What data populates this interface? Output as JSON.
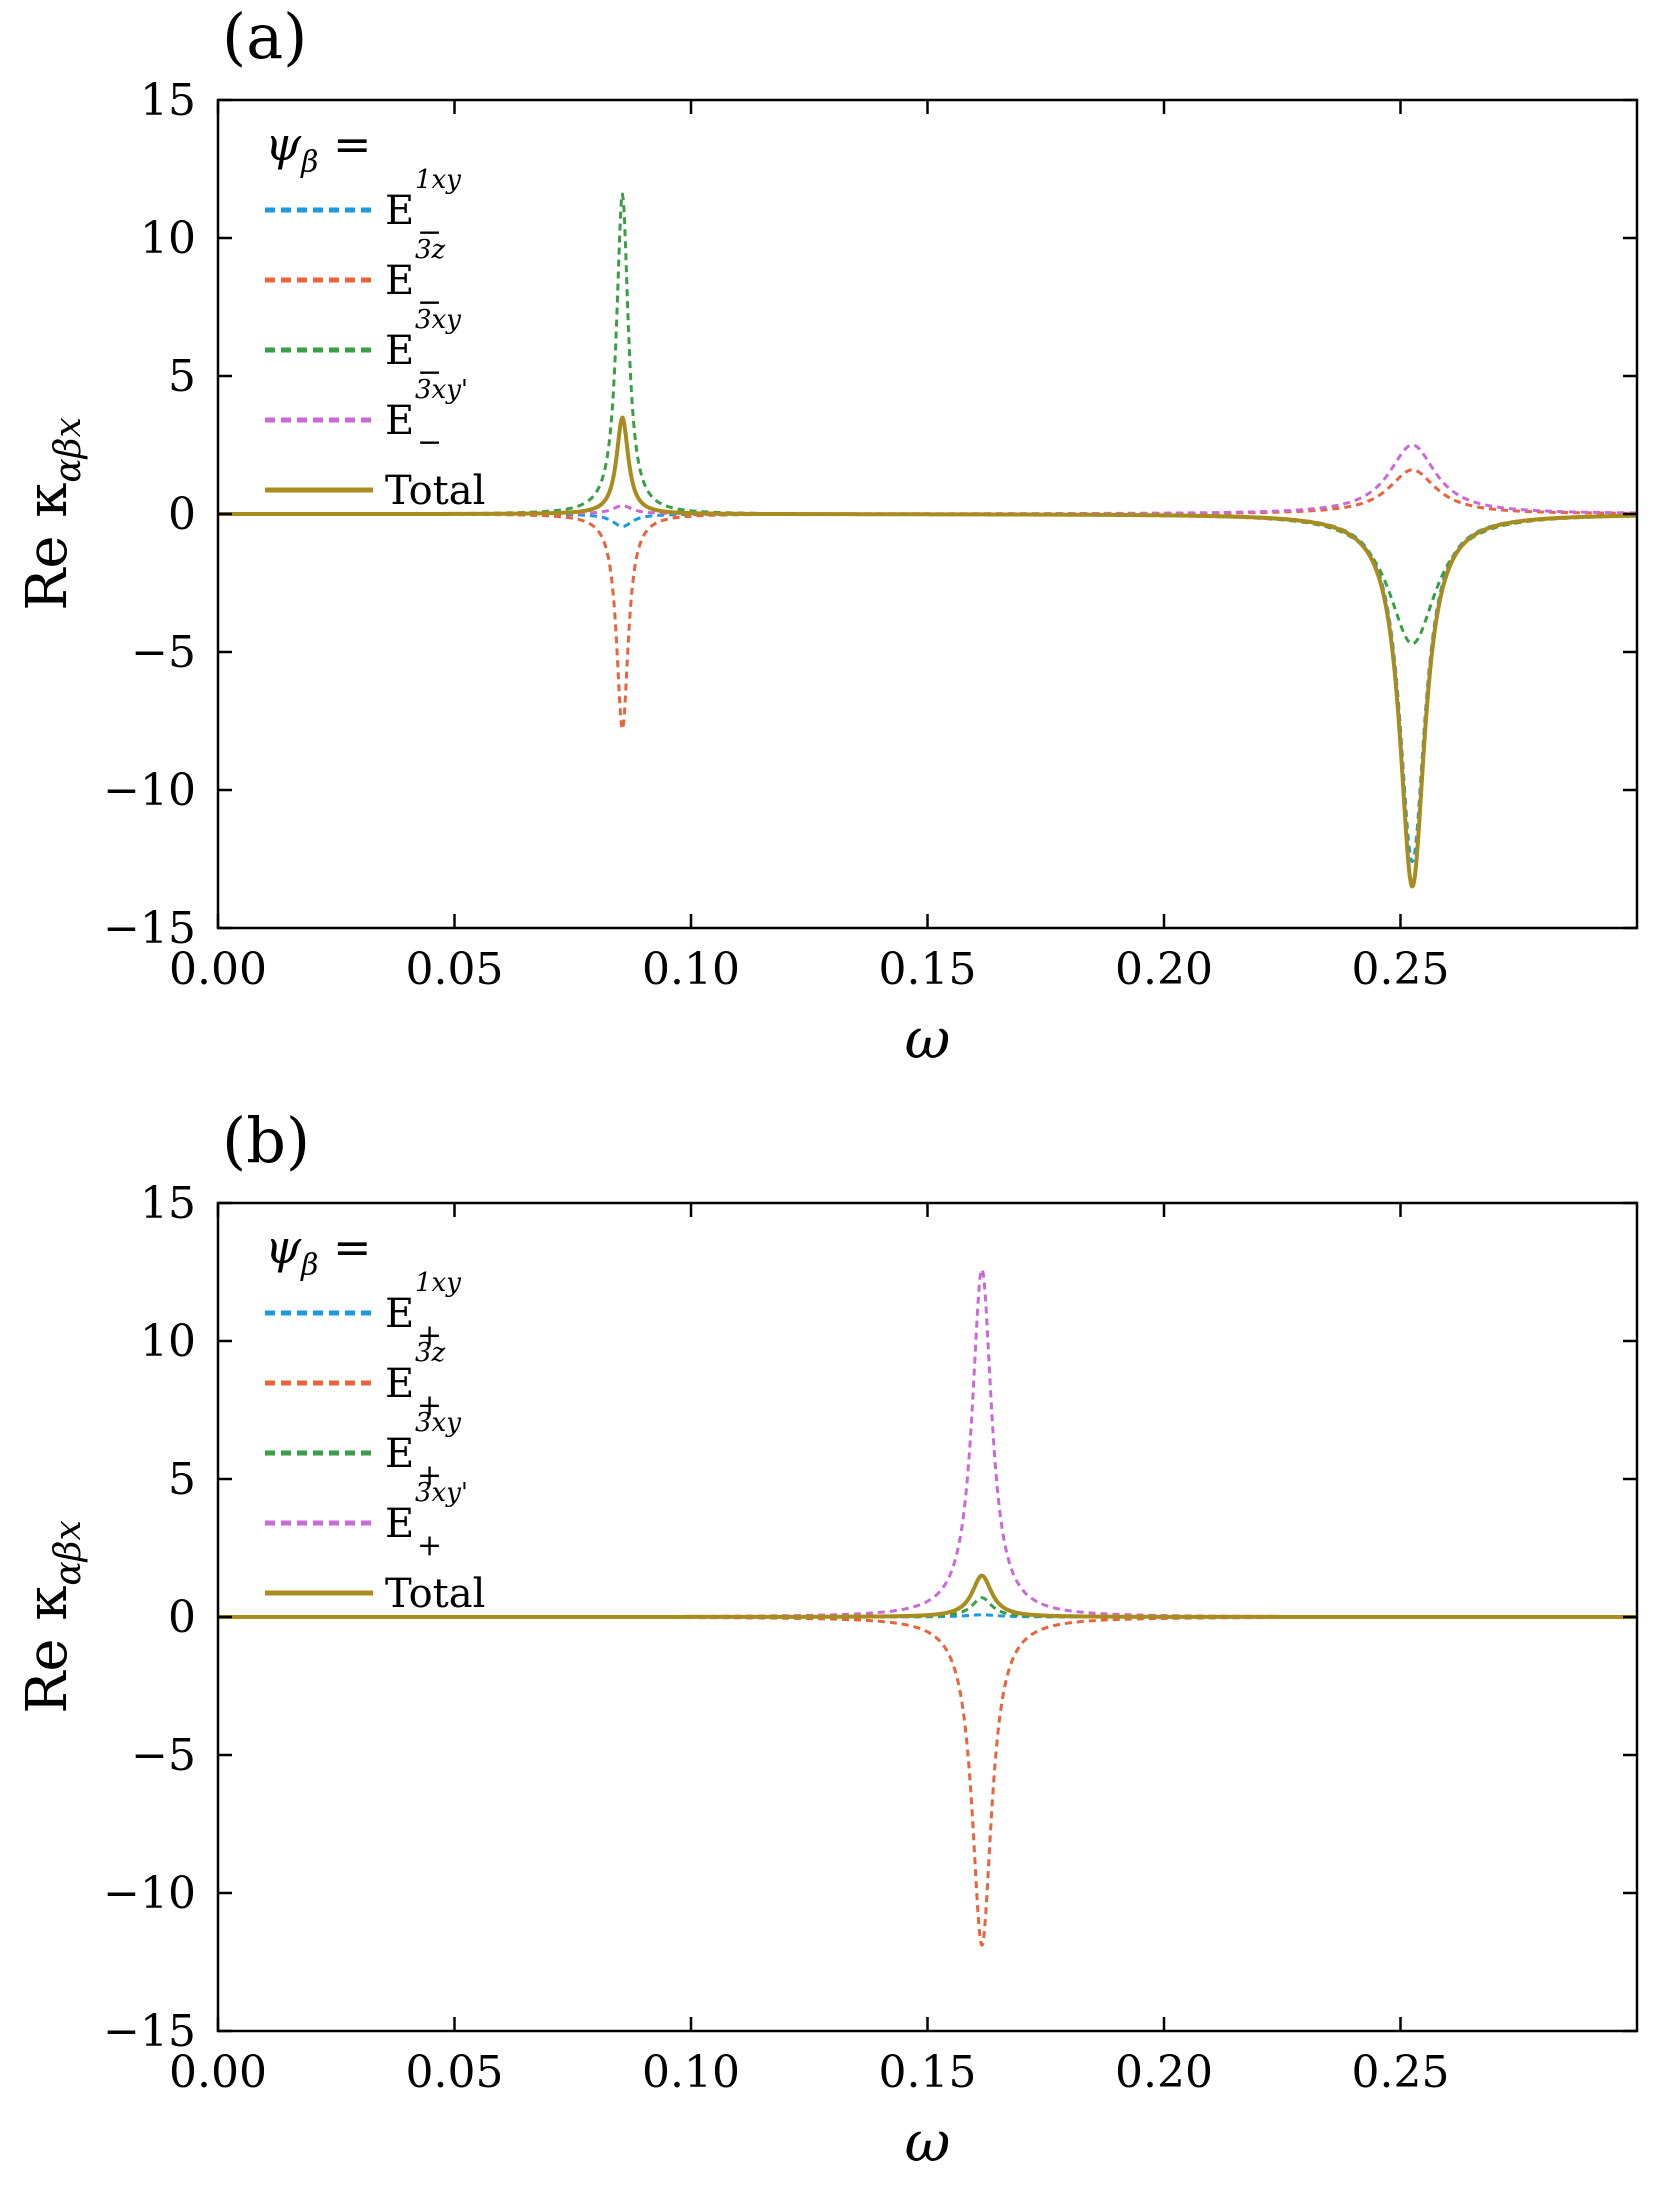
{
  "chart_data": [
    {
      "panel": "(a)",
      "type": "line",
      "xlabel": "ω",
      "ylabel": "Re κ",
      "ylabel_subscript": "αβx",
      "xlim": [
        0.0,
        0.3
      ],
      "ylim": [
        -15,
        15
      ],
      "xticks": [
        0.0,
        0.05,
        0.1,
        0.15,
        0.2,
        0.25
      ],
      "xtick_labels": [
        "0.00",
        "0.05",
        "0.10",
        "0.15",
        "0.20",
        "0.25"
      ],
      "yticks": [
        15,
        10,
        5,
        0,
        -5,
        -10,
        -15
      ],
      "ytick_labels": [
        "15",
        "10",
        "5",
        "0",
        "−5",
        "−10",
        "−15"
      ],
      "legend_title": "ψ",
      "legend_title_sub": "β",
      "legend_title_eq": " =",
      "legend_position": "top-left",
      "series": [
        {
          "name": "E",
          "sup": "1xy",
          "sub": "−",
          "color": "#1a9ae0",
          "style": "dashed",
          "peaks": [
            {
              "x0": 0.0855,
              "amp": -0.45,
              "gamma": 0.0025
            },
            {
              "x0": 0.2525,
              "amp": -12.6,
              "gamma": 0.0032
            }
          ]
        },
        {
          "name": "E",
          "sup": "3z",
          "sub": "−",
          "color": "#e8643c",
          "style": "dashed",
          "peaks": [
            {
              "x0": 0.0855,
              "amp": -7.8,
              "gamma": 0.0015
            },
            {
              "x0": 0.2525,
              "amp": 1.6,
              "gamma": 0.006
            }
          ]
        },
        {
          "name": "E",
          "sup": "3xy",
          "sub": "−",
          "color": "#3a9e46",
          "style": "dashed",
          "peaks": [
            {
              "x0": 0.0855,
              "amp": 11.6,
              "gamma": 0.0015
            },
            {
              "x0": 0.2525,
              "amp": -4.7,
              "gamma": 0.006
            }
          ]
        },
        {
          "name": "E",
          "sup": "3xy'",
          "sub": "−",
          "color": "#c96ad6",
          "style": "dashed",
          "peaks": [
            {
              "x0": 0.0855,
              "amp": 0.3,
              "gamma": 0.0025
            },
            {
              "x0": 0.2525,
              "amp": 2.5,
              "gamma": 0.006
            }
          ]
        },
        {
          "name": "Total",
          "sup": "",
          "sub": "",
          "color": "#a88c1e",
          "style": "solid",
          "peaks": [
            {
              "x0": 0.0855,
              "amp": 3.5,
              "gamma": 0.0015
            },
            {
              "x0": 0.2525,
              "amp": -13.5,
              "gamma": 0.0032
            }
          ]
        }
      ]
    },
    {
      "panel": "(b)",
      "type": "line",
      "xlabel": "ω",
      "ylabel": "Re κ",
      "ylabel_subscript": "αβx",
      "xlim": [
        0.0,
        0.3
      ],
      "ylim": [
        -15,
        15
      ],
      "xticks": [
        0.0,
        0.05,
        0.1,
        0.15,
        0.2,
        0.25
      ],
      "xtick_labels": [
        "0.00",
        "0.05",
        "0.10",
        "0.15",
        "0.20",
        "0.25"
      ],
      "yticks": [
        15,
        10,
        5,
        0,
        -5,
        -10,
        -15
      ],
      "ytick_labels": [
        "15",
        "10",
        "5",
        "0",
        "−5",
        "−10",
        "−15"
      ],
      "legend_title": "ψ",
      "legend_title_sub": "β",
      "legend_title_eq": " =",
      "legend_position": "top-left",
      "series": [
        {
          "name": "E",
          "sup": "1xy",
          "sub": "+",
          "color": "#1a9ae0",
          "style": "dashed",
          "peaks": [
            {
              "x0": 0.1615,
              "amp": 0.08,
              "gamma": 0.004
            }
          ]
        },
        {
          "name": "E",
          "sup": "3z",
          "sub": "+",
          "color": "#e8643c",
          "style": "dashed",
          "peaks": [
            {
              "x0": 0.1615,
              "amp": -11.9,
              "gamma": 0.0025
            }
          ]
        },
        {
          "name": "E",
          "sup": "3xy",
          "sub": "+",
          "color": "#3a9e46",
          "style": "dashed",
          "peaks": [
            {
              "x0": 0.1615,
              "amp": 0.7,
              "gamma": 0.0025
            }
          ]
        },
        {
          "name": "E",
          "sup": "3xy'",
          "sub": "+",
          "color": "#c96ad6",
          "style": "dashed",
          "peaks": [
            {
              "x0": 0.1615,
              "amp": 12.6,
              "gamma": 0.0025
            }
          ]
        },
        {
          "name": "Total",
          "sup": "",
          "sub": "",
          "color": "#a88c1e",
          "style": "solid",
          "peaks": [
            {
              "x0": 0.1615,
              "amp": 1.5,
              "gamma": 0.0025
            }
          ]
        }
      ]
    }
  ]
}
